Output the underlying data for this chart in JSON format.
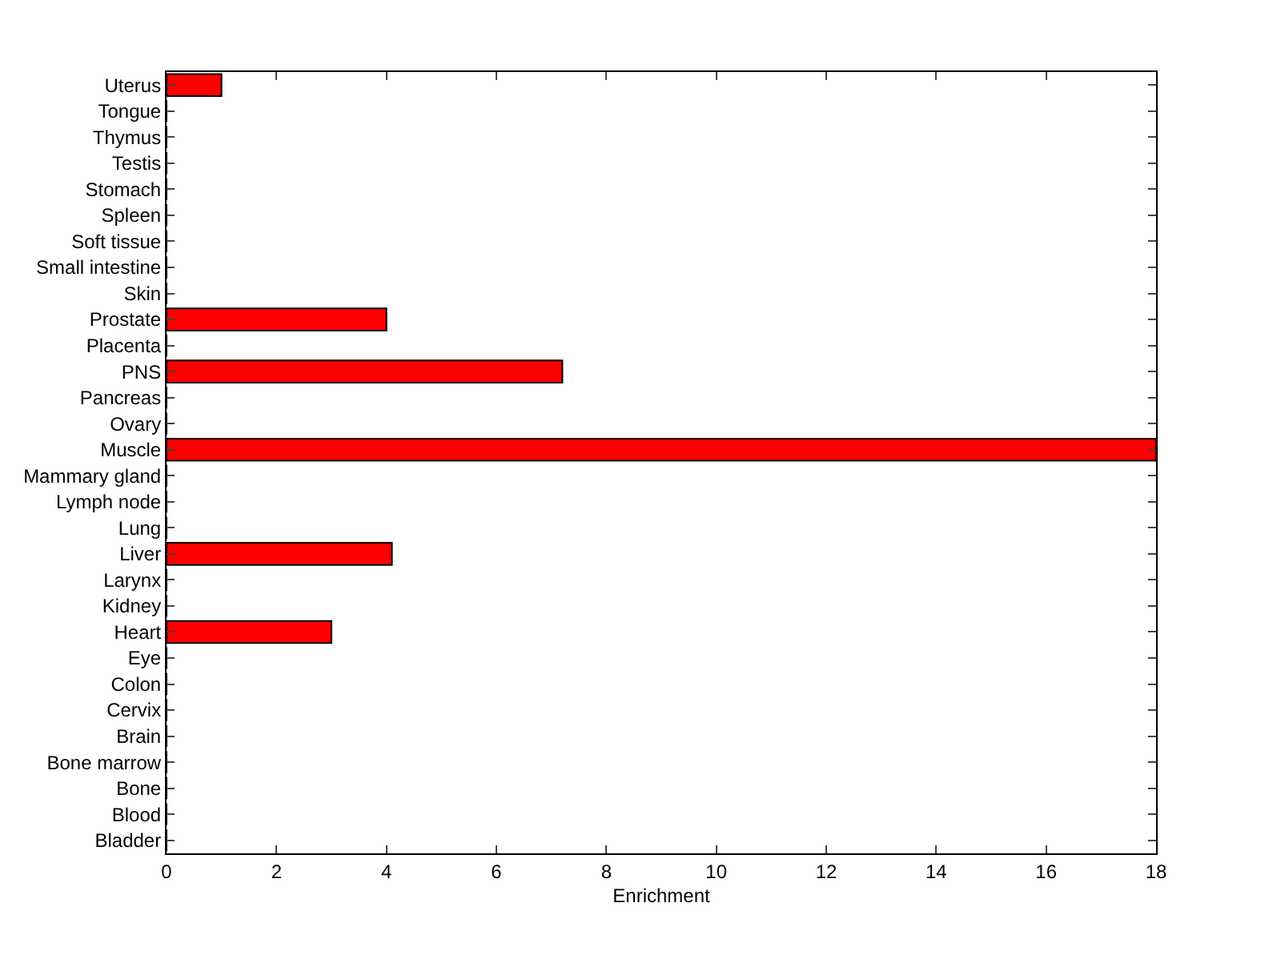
{
  "chart_data": {
    "type": "bar",
    "orientation": "horizontal",
    "xlabel": "Enrichment",
    "categories": [
      "Uterus",
      "Tongue",
      "Thymus",
      "Testis",
      "Stomach",
      "Spleen",
      "Soft tissue",
      "Small intestine",
      "Skin",
      "Prostate",
      "Placenta",
      "PNS",
      "Pancreas",
      "Ovary",
      "Muscle",
      "Mammary gland",
      "Lymph node",
      "Lung",
      "Liver",
      "Larynx",
      "Kidney",
      "Heart",
      "Eye",
      "Colon",
      "Cervix",
      "Brain",
      "Bone marrow",
      "Bone",
      "Blood",
      "Bladder"
    ],
    "values": [
      1,
      0,
      0,
      0,
      0,
      0,
      0,
      0,
      0,
      4,
      0,
      7.2,
      0,
      0,
      18,
      0,
      0,
      0,
      4.1,
      0,
      0,
      3,
      0,
      0,
      0,
      0,
      0,
      0,
      0,
      0
    ],
    "color": "#ff0000",
    "xlim": [
      0,
      18
    ],
    "xticks": [
      0,
      2,
      4,
      6,
      8,
      10,
      12,
      14,
      16,
      18
    ],
    "grid": false
  }
}
